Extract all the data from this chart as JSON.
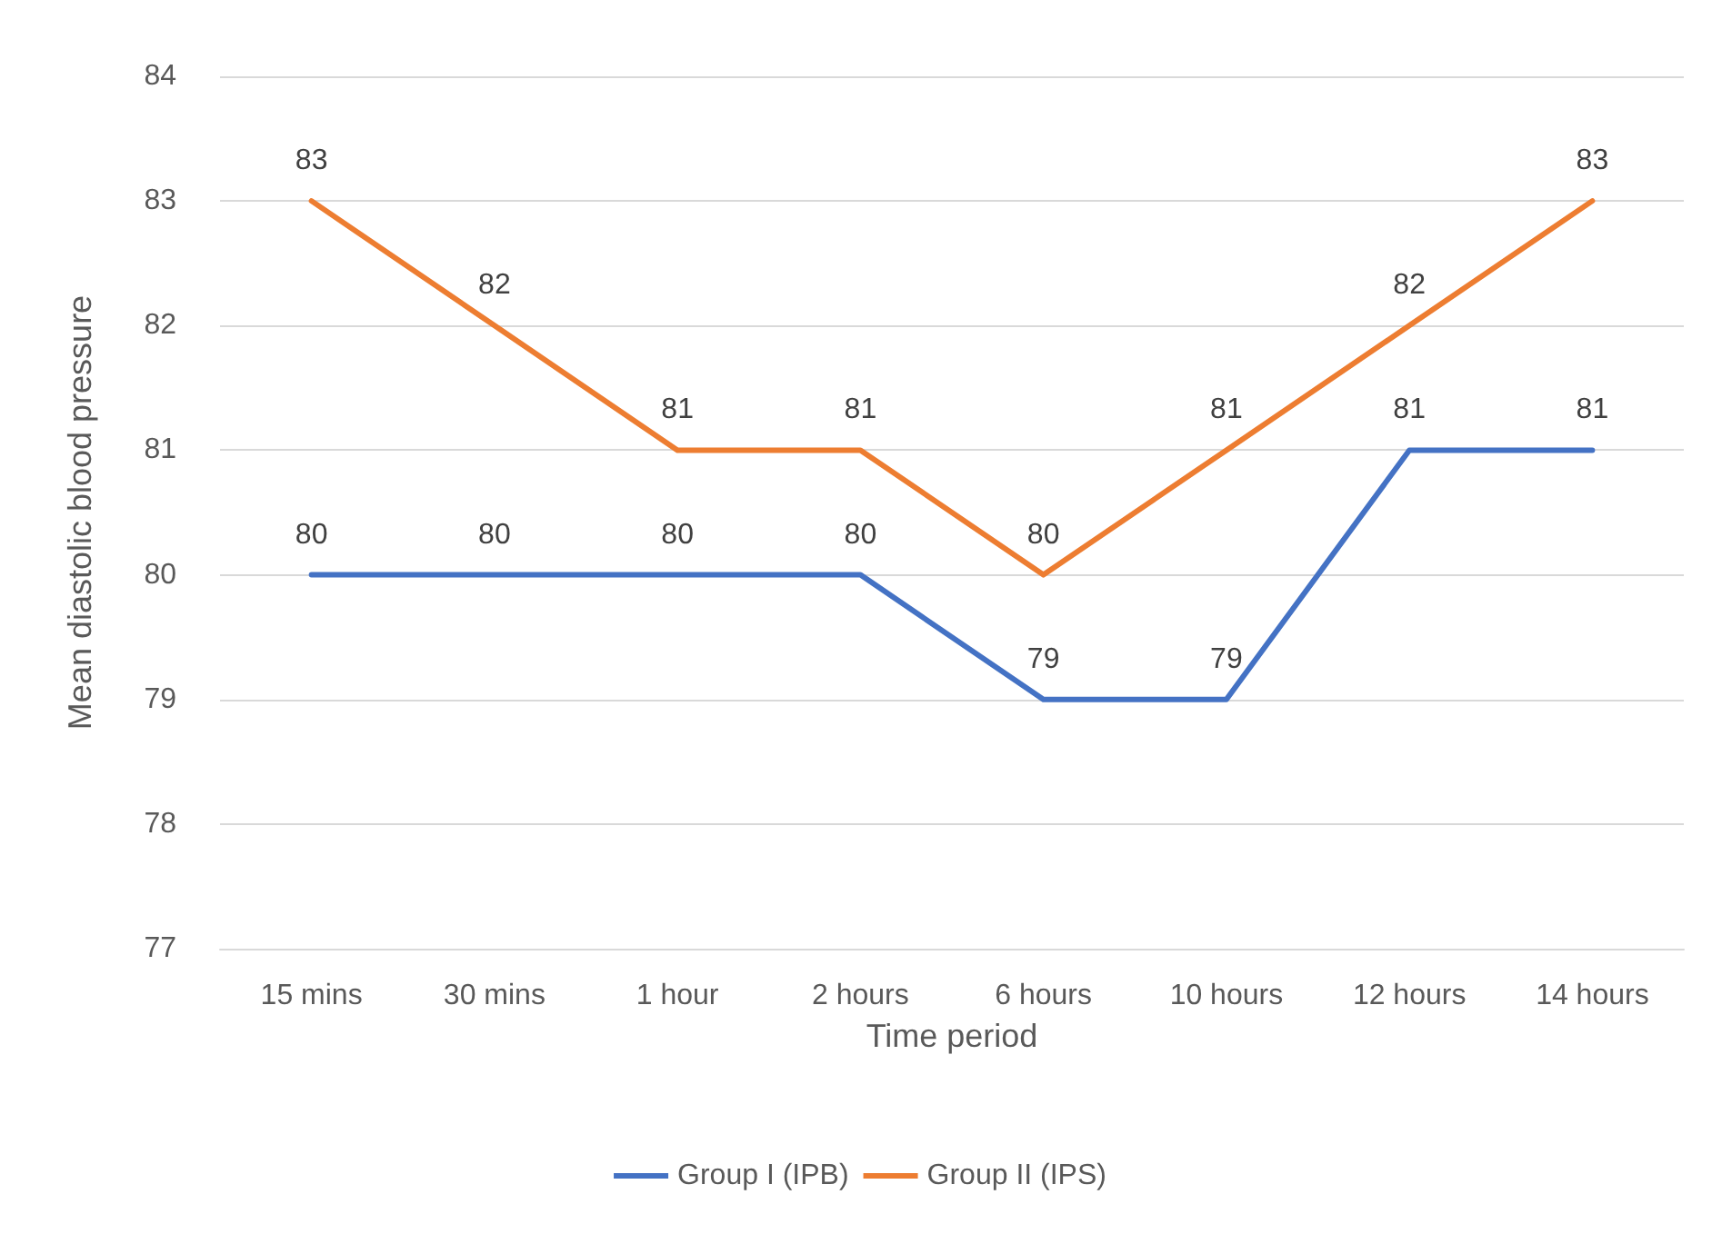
{
  "chart_data": {
    "type": "line",
    "xlabel": "Time period",
    "ylabel": "Mean diastolic blood pressure",
    "categories": [
      "15 mins",
      "30 mins",
      "1 hour",
      "2 hours",
      "6 hours",
      "10 hours",
      "12 hours",
      "14 hours"
    ],
    "series": [
      {
        "name": "Group I (IPB)",
        "color": "#4472c4",
        "values": [
          80,
          80,
          80,
          80,
          79,
          79,
          81,
          81
        ]
      },
      {
        "name": "Group II (IPS)",
        "color": "#ed7d31",
        "values": [
          83,
          82,
          81,
          81,
          80,
          81,
          82,
          83
        ]
      }
    ],
    "ylim": [
      77,
      84
    ],
    "yticks": [
      77,
      78,
      79,
      80,
      81,
      82,
      83,
      84
    ],
    "grid": "y",
    "legend": "bottom",
    "data_labels": true,
    "marker": "none",
    "line_style": "solid"
  }
}
